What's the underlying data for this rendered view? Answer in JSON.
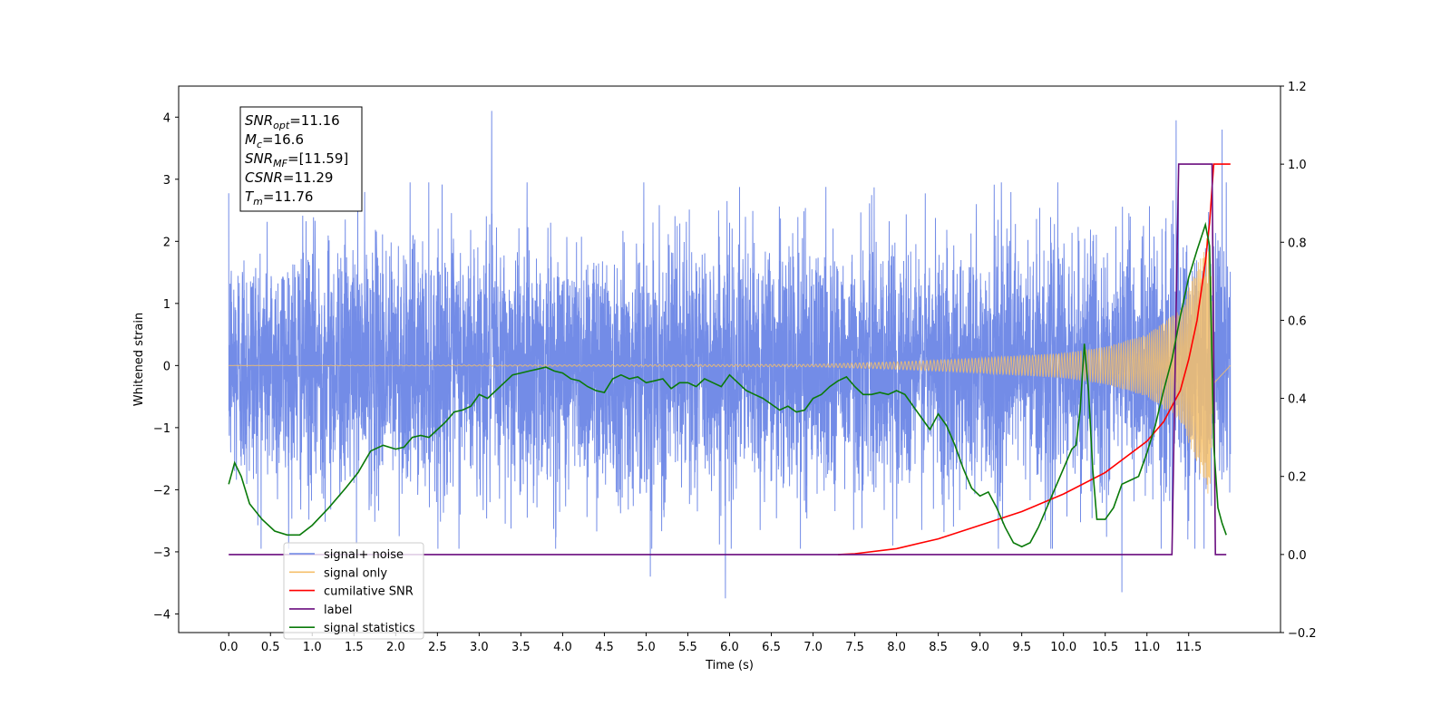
{
  "chart_data": {
    "type": "line",
    "xlabel": "Time (s)",
    "ylabel_left": "Whitened strain",
    "ylabel_right": "",
    "xlim": [
      -0.6,
      12.6
    ],
    "ylim_left": [
      -4.3,
      4.5
    ],
    "ylim_right": [
      -0.2,
      1.2
    ],
    "x_ticks": [
      "0.0",
      "0.5",
      "1.0",
      "1.5",
      "2.0",
      "2.5",
      "3.0",
      "3.5",
      "4.0",
      "4.5",
      "5.0",
      "5.5",
      "6.0",
      "6.5",
      "7.0",
      "7.5",
      "8.0",
      "8.5",
      "9.0",
      "9.5",
      "10.0",
      "10.5",
      "11.0",
      "11.5"
    ],
    "y_ticks_left": [
      "4",
      "3",
      "2",
      "1",
      "0",
      "−1",
      "−2",
      "−3",
      "−4"
    ],
    "y_ticks_right": [
      "1.2",
      "1.0",
      "0.8",
      "0.6",
      "0.4",
      "0.2",
      "0.0",
      "−0.2"
    ],
    "grid": false,
    "legend_position": "lower-left",
    "info_box": {
      "snr_opt_label": "SNR",
      "snr_opt_sub": "opt",
      "snr_opt_value": "=11.16",
      "mc_label": "M",
      "mc_sub": "c",
      "mc_value": "=16.6",
      "snr_mf_label": "SNR",
      "snr_mf_sub": "MF",
      "snr_mf_value": "=[11.59]",
      "csnr_label": "CSNR",
      "csnr_value": "=11.29",
      "tm_label": "T",
      "tm_sub": "m",
      "tm_value": "=11.76"
    },
    "series": [
      {
        "name": "signal+ noise",
        "color": "#6b86e6",
        "axis": "left",
        "kind": "whitened-noise",
        "x_range": [
          0.0,
          12.0
        ],
        "noise_sigma": 1.0,
        "peaks": [
          [
            3.15,
            4.1
          ],
          [
            11.9,
            3.8
          ],
          [
            11.35,
            3.95
          ],
          [
            5.05,
            -3.4
          ],
          [
            5.95,
            -3.75
          ],
          [
            10.7,
            -3.65
          ]
        ]
      },
      {
        "name": "signal only",
        "color": "#f5bf6b",
        "axis": "left",
        "kind": "chirp",
        "x_range": [
          0.0,
          12.0
        ],
        "envelope": [
          [
            0.0,
            0.0
          ],
          [
            7.0,
            0.02
          ],
          [
            8.0,
            0.06
          ],
          [
            9.0,
            0.12
          ],
          [
            10.0,
            0.2
          ],
          [
            10.5,
            0.3
          ],
          [
            11.0,
            0.5
          ],
          [
            11.4,
            0.9
          ],
          [
            11.6,
            1.6
          ],
          [
            11.75,
            2.2
          ],
          [
            11.8,
            0.3
          ],
          [
            12.0,
            0.0
          ]
        ]
      },
      {
        "name": "cumilative SNR",
        "color": "#ff0000",
        "axis": "right",
        "x": [
          7.3,
          7.5,
          8.0,
          8.5,
          9.0,
          9.5,
          10.0,
          10.5,
          11.0,
          11.2,
          11.4,
          11.5,
          11.6,
          11.7,
          11.75,
          11.8,
          11.9,
          12.0
        ],
        "y": [
          0.0,
          0.002,
          0.015,
          0.04,
          0.075,
          0.11,
          0.155,
          0.21,
          0.29,
          0.34,
          0.42,
          0.5,
          0.6,
          0.75,
          0.85,
          1.0,
          1.0,
          1.0
        ]
      },
      {
        "name": "label",
        "color": "#6a0d7f",
        "axis": "right",
        "x": [
          0.0,
          11.3,
          11.38,
          11.78,
          11.82,
          11.95
        ],
        "y": [
          0.0,
          0.0,
          1.0,
          1.0,
          0.0,
          0.0
        ]
      },
      {
        "name": "signal statistics",
        "color": "#0a7a0a",
        "axis": "right",
        "x": [
          0.0,
          0.07,
          0.15,
          0.25,
          0.4,
          0.55,
          0.7,
          0.85,
          1.0,
          1.2,
          1.4,
          1.55,
          1.7,
          1.85,
          2.0,
          2.1,
          2.2,
          2.3,
          2.4,
          2.5,
          2.6,
          2.7,
          2.8,
          2.9,
          3.0,
          3.1,
          3.2,
          3.3,
          3.4,
          3.5,
          3.6,
          3.7,
          3.8,
          3.9,
          4.0,
          4.1,
          4.2,
          4.3,
          4.4,
          4.5,
          4.6,
          4.7,
          4.8,
          4.9,
          5.0,
          5.1,
          5.2,
          5.3,
          5.4,
          5.5,
          5.6,
          5.7,
          5.8,
          5.9,
          6.0,
          6.1,
          6.2,
          6.3,
          6.4,
          6.5,
          6.6,
          6.7,
          6.8,
          6.9,
          7.0,
          7.1,
          7.2,
          7.3,
          7.4,
          7.5,
          7.6,
          7.7,
          7.8,
          7.9,
          8.0,
          8.1,
          8.2,
          8.3,
          8.4,
          8.5,
          8.6,
          8.7,
          8.8,
          8.9,
          9.0,
          9.1,
          9.2,
          9.3,
          9.4,
          9.5,
          9.6,
          9.7,
          9.8,
          9.9,
          10.0,
          10.1,
          10.15,
          10.2,
          10.25,
          10.3,
          10.35,
          10.4,
          10.5,
          10.6,
          10.7,
          10.8,
          10.9,
          11.0,
          11.1,
          11.2,
          11.3,
          11.4,
          11.5,
          11.6,
          11.7,
          11.75,
          11.8,
          11.85,
          11.9,
          11.95
        ],
        "y": [
          0.18,
          0.235,
          0.2,
          0.13,
          0.09,
          0.06,
          0.05,
          0.05,
          0.075,
          0.12,
          0.17,
          0.21,
          0.265,
          0.28,
          0.27,
          0.275,
          0.3,
          0.305,
          0.3,
          0.32,
          0.34,
          0.365,
          0.37,
          0.38,
          0.41,
          0.4,
          0.42,
          0.44,
          0.46,
          0.465,
          0.47,
          0.475,
          0.48,
          0.47,
          0.465,
          0.45,
          0.445,
          0.43,
          0.42,
          0.415,
          0.45,
          0.46,
          0.45,
          0.455,
          0.44,
          0.445,
          0.45,
          0.425,
          0.44,
          0.44,
          0.43,
          0.45,
          0.44,
          0.43,
          0.46,
          0.44,
          0.42,
          0.41,
          0.4,
          0.385,
          0.37,
          0.38,
          0.365,
          0.37,
          0.4,
          0.41,
          0.43,
          0.445,
          0.455,
          0.43,
          0.41,
          0.41,
          0.415,
          0.41,
          0.42,
          0.41,
          0.38,
          0.35,
          0.32,
          0.36,
          0.33,
          0.28,
          0.22,
          0.17,
          0.15,
          0.16,
          0.12,
          0.07,
          0.03,
          0.02,
          0.03,
          0.07,
          0.12,
          0.17,
          0.22,
          0.27,
          0.28,
          0.37,
          0.54,
          0.42,
          0.22,
          0.09,
          0.09,
          0.12,
          0.18,
          0.19,
          0.2,
          0.26,
          0.33,
          0.42,
          0.5,
          0.61,
          0.71,
          0.78,
          0.845,
          0.79,
          0.28,
          0.12,
          0.08,
          0.05
        ]
      }
    ]
  }
}
